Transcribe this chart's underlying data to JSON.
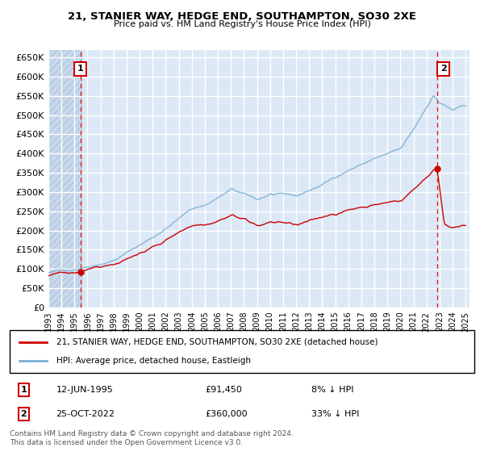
{
  "title": "21, STANIER WAY, HEDGE END, SOUTHAMPTON, SO30 2XE",
  "subtitle": "Price paid vs. HM Land Registry's House Price Index (HPI)",
  "legend_house": "21, STANIER WAY, HEDGE END, SOUTHAMPTON, SO30 2XE (detached house)",
  "legend_hpi": "HPI: Average price, detached house, Eastleigh",
  "annotation1_date": "12-JUN-1995",
  "annotation1_price": "£91,450",
  "annotation1_hpi": "8% ↓ HPI",
  "annotation2_date": "25-OCT-2022",
  "annotation2_price": "£360,000",
  "annotation2_hpi": "33% ↓ HPI",
  "footnote": "Contains HM Land Registry data © Crown copyright and database right 2024.\nThis data is licensed under the Open Government Licence v3.0.",
  "house_color": "#cc0000",
  "hpi_color": "#7bafd4",
  "vline_color": "#dd2222",
  "bg_color": "#ffffff",
  "plot_bg": "#dce8f5",
  "grid_color": "#ffffff",
  "hatch_color": "#c8d8ea",
  "ylim": [
    0,
    670000
  ],
  "yticks": [
    0,
    50000,
    100000,
    150000,
    200000,
    250000,
    300000,
    350000,
    400000,
    450000,
    500000,
    550000,
    600000,
    650000
  ],
  "sale1_year": 1995.45,
  "sale1_price": 91450,
  "sale2_year": 2022.8,
  "sale2_price": 360000,
  "figsize": [
    6.0,
    5.6
  ],
  "dpi": 100
}
